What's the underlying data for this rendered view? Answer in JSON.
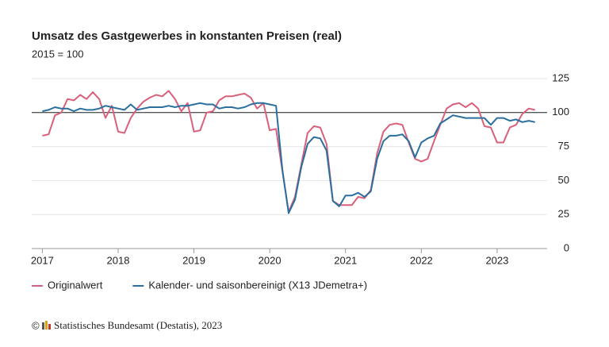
{
  "chart_data": {
    "type": "line",
    "title": "Umsatz des Gastgewerbes in konstanten Preisen (real)",
    "subtitle": "2015 = 100",
    "x": [
      2017,
      2017.083,
      2017.167,
      2017.25,
      2017.333,
      2017.417,
      2017.5,
      2017.583,
      2017.667,
      2017.75,
      2017.833,
      2017.917,
      2018,
      2018.083,
      2018.167,
      2018.25,
      2018.333,
      2018.417,
      2018.5,
      2018.583,
      2018.667,
      2018.75,
      2018.833,
      2018.917,
      2019,
      2019.083,
      2019.167,
      2019.25,
      2019.333,
      2019.417,
      2019.5,
      2019.583,
      2019.667,
      2019.75,
      2019.833,
      2019.917,
      2020,
      2020.083,
      2020.167,
      2020.25,
      2020.333,
      2020.417,
      2020.5,
      2020.583,
      2020.667,
      2020.75,
      2020.833,
      2020.917,
      2021,
      2021.083,
      2021.167,
      2021.25,
      2021.333,
      2021.417,
      2021.5,
      2021.583,
      2021.667,
      2021.75,
      2021.833,
      2021.917,
      2022,
      2022.083,
      2022.167,
      2022.25,
      2022.333,
      2022.417,
      2022.5,
      2022.583,
      2022.667,
      2022.75,
      2022.833,
      2022.917,
      2023,
      2023.083,
      2023.167,
      2023.25,
      2023.333,
      2023.417,
      2023.5
    ],
    "series": [
      {
        "name": "Originalwert",
        "color": "#d9607a",
        "values": [
          83,
          84,
          98,
          100,
          110,
          109,
          113,
          110,
          115,
          110,
          96,
          105,
          86,
          85,
          96,
          103,
          108,
          111,
          113,
          112,
          116,
          110,
          101,
          107,
          86,
          87,
          100,
          101,
          109,
          112,
          112,
          113,
          114,
          111,
          103,
          107,
          87,
          88,
          57,
          27,
          38,
          62,
          85,
          90,
          89,
          77,
          35,
          32,
          32,
          32,
          38,
          37,
          43,
          70,
          86,
          91,
          92,
          91,
          78,
          66,
          64,
          66,
          79,
          91,
          103,
          106,
          107,
          104,
          107,
          103,
          90,
          89,
          78,
          78,
          89,
          91,
          99,
          103,
          102
        ]
      },
      {
        "name": "Kalender- und saisonbereinigt (X13 JDemetra+)",
        "color": "#2a6f9e",
        "values": [
          101,
          102,
          104,
          103,
          103,
          101,
          103,
          102,
          102,
          103,
          105,
          104,
          103,
          102,
          106,
          102,
          103,
          104,
          104,
          104,
          105,
          104,
          105,
          105,
          106,
          107,
          106,
          106,
          103,
          104,
          104,
          103,
          104,
          106,
          107,
          107,
          106,
          105,
          58,
          26,
          36,
          60,
          77,
          82,
          81,
          72,
          35,
          31,
          39,
          39,
          41,
          38,
          42,
          66,
          79,
          83,
          83,
          84,
          79,
          67,
          78,
          81,
          83,
          92,
          95,
          98,
          97,
          96,
          96,
          96,
          96,
          91,
          96,
          96,
          94,
          95,
          93,
          94,
          93
        ]
      }
    ],
    "xlim": [
      2016.86,
      2023.66
    ],
    "xticks": [
      2017,
      2018,
      2019,
      2020,
      2021,
      2022,
      2023
    ],
    "ylim": [
      0,
      125
    ],
    "yticks": [
      0,
      25,
      50,
      75,
      100,
      125
    ],
    "reference_line": 100,
    "grid": true,
    "legend": "bottom",
    "source": "Statistisches Bundesamt (Destatis), 2023"
  }
}
